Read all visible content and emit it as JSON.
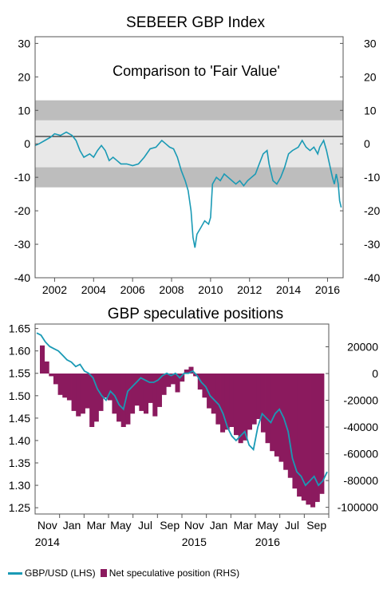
{
  "colors": {
    "teal": "#1a9ab5",
    "maroon": "#8b1a5e",
    "band_dark": "#bdbdbd",
    "band_light": "#e8e8e8"
  },
  "chart_data": [
    {
      "type": "line",
      "title": "SEBEER GBP Index",
      "annotation": "Comparison to 'Fair Value'",
      "x_ticks": [
        "2002",
        "2004",
        "2006",
        "2008",
        "2010",
        "2012",
        "2014",
        "2016"
      ],
      "y_ticks": [
        "30",
        "20",
        "10",
        "0",
        "-10",
        "-20",
        "-30",
        "-40"
      ],
      "xlim": [
        2001.0,
        2016.8
      ],
      "ylim": [
        -40,
        32
      ],
      "bands": [
        {
          "from": 7,
          "to": 13,
          "shade": "dark"
        },
        {
          "from": -7,
          "to": 7,
          "shade": "light"
        },
        {
          "from": -13,
          "to": -7,
          "shade": "dark"
        }
      ],
      "series": [
        {
          "values": [
            [
              2001.0,
              -0.5
            ],
            [
              2001.2,
              0
            ],
            [
              2001.5,
              1
            ],
            [
              2001.8,
              2
            ],
            [
              2002.0,
              3
            ],
            [
              2002.3,
              2.5
            ],
            [
              2002.6,
              3.5
            ],
            [
              2002.9,
              2.5
            ],
            [
              2003.1,
              1
            ],
            [
              2003.3,
              -2
            ],
            [
              2003.5,
              -4
            ],
            [
              2003.8,
              -3
            ],
            [
              2004.0,
              -4
            ],
            [
              2004.2,
              -2
            ],
            [
              2004.4,
              -0.5
            ],
            [
              2004.6,
              -2
            ],
            [
              2004.8,
              -5
            ],
            [
              2005.0,
              -4
            ],
            [
              2005.2,
              -5
            ],
            [
              2005.4,
              -6
            ],
            [
              2005.7,
              -6
            ],
            [
              2006.0,
              -6.5
            ],
            [
              2006.3,
              -6
            ],
            [
              2006.6,
              -4
            ],
            [
              2006.9,
              -1.5
            ],
            [
              2007.2,
              -1
            ],
            [
              2007.5,
              1
            ],
            [
              2007.7,
              0
            ],
            [
              2007.9,
              -1
            ],
            [
              2008.1,
              -1.5
            ],
            [
              2008.3,
              -4
            ],
            [
              2008.5,
              -8
            ],
            [
              2008.7,
              -11
            ],
            [
              2008.85,
              -14
            ],
            [
              2009.0,
              -20
            ],
            [
              2009.1,
              -28
            ],
            [
              2009.2,
              -31
            ],
            [
              2009.3,
              -27
            ],
            [
              2009.5,
              -25
            ],
            [
              2009.7,
              -23
            ],
            [
              2009.9,
              -24
            ],
            [
              2010.0,
              -22
            ],
            [
              2010.1,
              -12
            ],
            [
              2010.3,
              -10
            ],
            [
              2010.5,
              -11
            ],
            [
              2010.7,
              -9
            ],
            [
              2010.9,
              -10
            ],
            [
              2011.1,
              -11
            ],
            [
              2011.3,
              -12
            ],
            [
              2011.5,
              -11
            ],
            [
              2011.7,
              -12.5
            ],
            [
              2011.9,
              -11
            ],
            [
              2012.1,
              -10
            ],
            [
              2012.3,
              -9
            ],
            [
              2012.5,
              -6
            ],
            [
              2012.7,
              -3
            ],
            [
              2012.9,
              -2
            ],
            [
              2013.0,
              -6
            ],
            [
              2013.2,
              -11
            ],
            [
              2013.4,
              -12
            ],
            [
              2013.6,
              -10
            ],
            [
              2013.8,
              -7
            ],
            [
              2014.0,
              -3
            ],
            [
              2014.2,
              -2
            ],
            [
              2014.5,
              -1
            ],
            [
              2014.7,
              1
            ],
            [
              2014.9,
              -1
            ],
            [
              2015.1,
              -2
            ],
            [
              2015.3,
              -1
            ],
            [
              2015.5,
              -3
            ],
            [
              2015.6,
              -1
            ],
            [
              2015.8,
              1
            ],
            [
              2015.95,
              -2
            ],
            [
              2016.1,
              -6
            ],
            [
              2016.25,
              -10
            ],
            [
              2016.35,
              -12
            ],
            [
              2016.45,
              -9
            ],
            [
              2016.55,
              -12
            ],
            [
              2016.62,
              -17
            ],
            [
              2016.7,
              -19
            ]
          ]
        }
      ]
    },
    {
      "type": "line+bar",
      "title": "GBP speculative positions",
      "x_ticks": [
        "Nov",
        "Jan",
        "Mar",
        "May",
        "Jul",
        "Sep",
        "Nov",
        "Jan",
        "Mar",
        "May",
        "Jul",
        "Sep"
      ],
      "x_year_labels": [
        "2014",
        "2015",
        "2016"
      ],
      "y_left_ticks": [
        "1.65",
        "1.60",
        "1.55",
        "1.50",
        "1.45",
        "1.40",
        "1.35",
        "1.30",
        "1.25"
      ],
      "y_right_ticks": [
        "20000",
        "0",
        "-20000",
        "-40000",
        "-60000",
        "-80000",
        "-100000"
      ],
      "ylim_left": [
        1.236,
        1.66
      ],
      "ylim_right": [
        -105000,
        37000
      ],
      "series": [
        {
          "name": "GBP/USD (LHS)",
          "axis": "left",
          "values": [
            1.64,
            1.635,
            1.62,
            1.61,
            1.605,
            1.6,
            1.59,
            1.58,
            1.575,
            1.565,
            1.57,
            1.555,
            1.55,
            1.54,
            1.515,
            1.5,
            1.49,
            1.51,
            1.5,
            1.48,
            1.47,
            1.51,
            1.52,
            1.53,
            1.54,
            1.535,
            1.53,
            1.53,
            1.535,
            1.545,
            1.55,
            1.545,
            1.55,
            1.54,
            1.55,
            1.55,
            1.555,
            1.545,
            1.53,
            1.52,
            1.5,
            1.49,
            1.48,
            1.46,
            1.43,
            1.41,
            1.4,
            1.41,
            1.42,
            1.39,
            1.38,
            1.43,
            1.46,
            1.45,
            1.44,
            1.46,
            1.47,
            1.45,
            1.42,
            1.36,
            1.33,
            1.32,
            1.3,
            1.31,
            1.32,
            1.3,
            1.31,
            1.33
          ]
        },
        {
          "name": "Net speculative position (RHS)",
          "axis": "right",
          "values": [
            21000,
            9000,
            -2000,
            -8000,
            -16000,
            -18000,
            -20000,
            -28000,
            -32000,
            -30000,
            -26000,
            -40000,
            -36000,
            -28000,
            -18000,
            -20000,
            -30000,
            -36000,
            -40000,
            -38000,
            -30000,
            -24000,
            -28000,
            -30000,
            -22000,
            -32000,
            -25000,
            -16000,
            -10000,
            -8000,
            -14000,
            -6000,
            3000,
            5000,
            -2000,
            -12000,
            -18000,
            -26000,
            -30000,
            -38000,
            -44000,
            -42000,
            -40000,
            -46000,
            -52000,
            -50000,
            -42000,
            -38000,
            -34000,
            -44000,
            -52000,
            -58000,
            -62000,
            -66000,
            -72000,
            -78000,
            -86000,
            -92000,
            -95000,
            -98000,
            -100000,
            -96000,
            -90000
          ]
        }
      ]
    }
  ]
}
